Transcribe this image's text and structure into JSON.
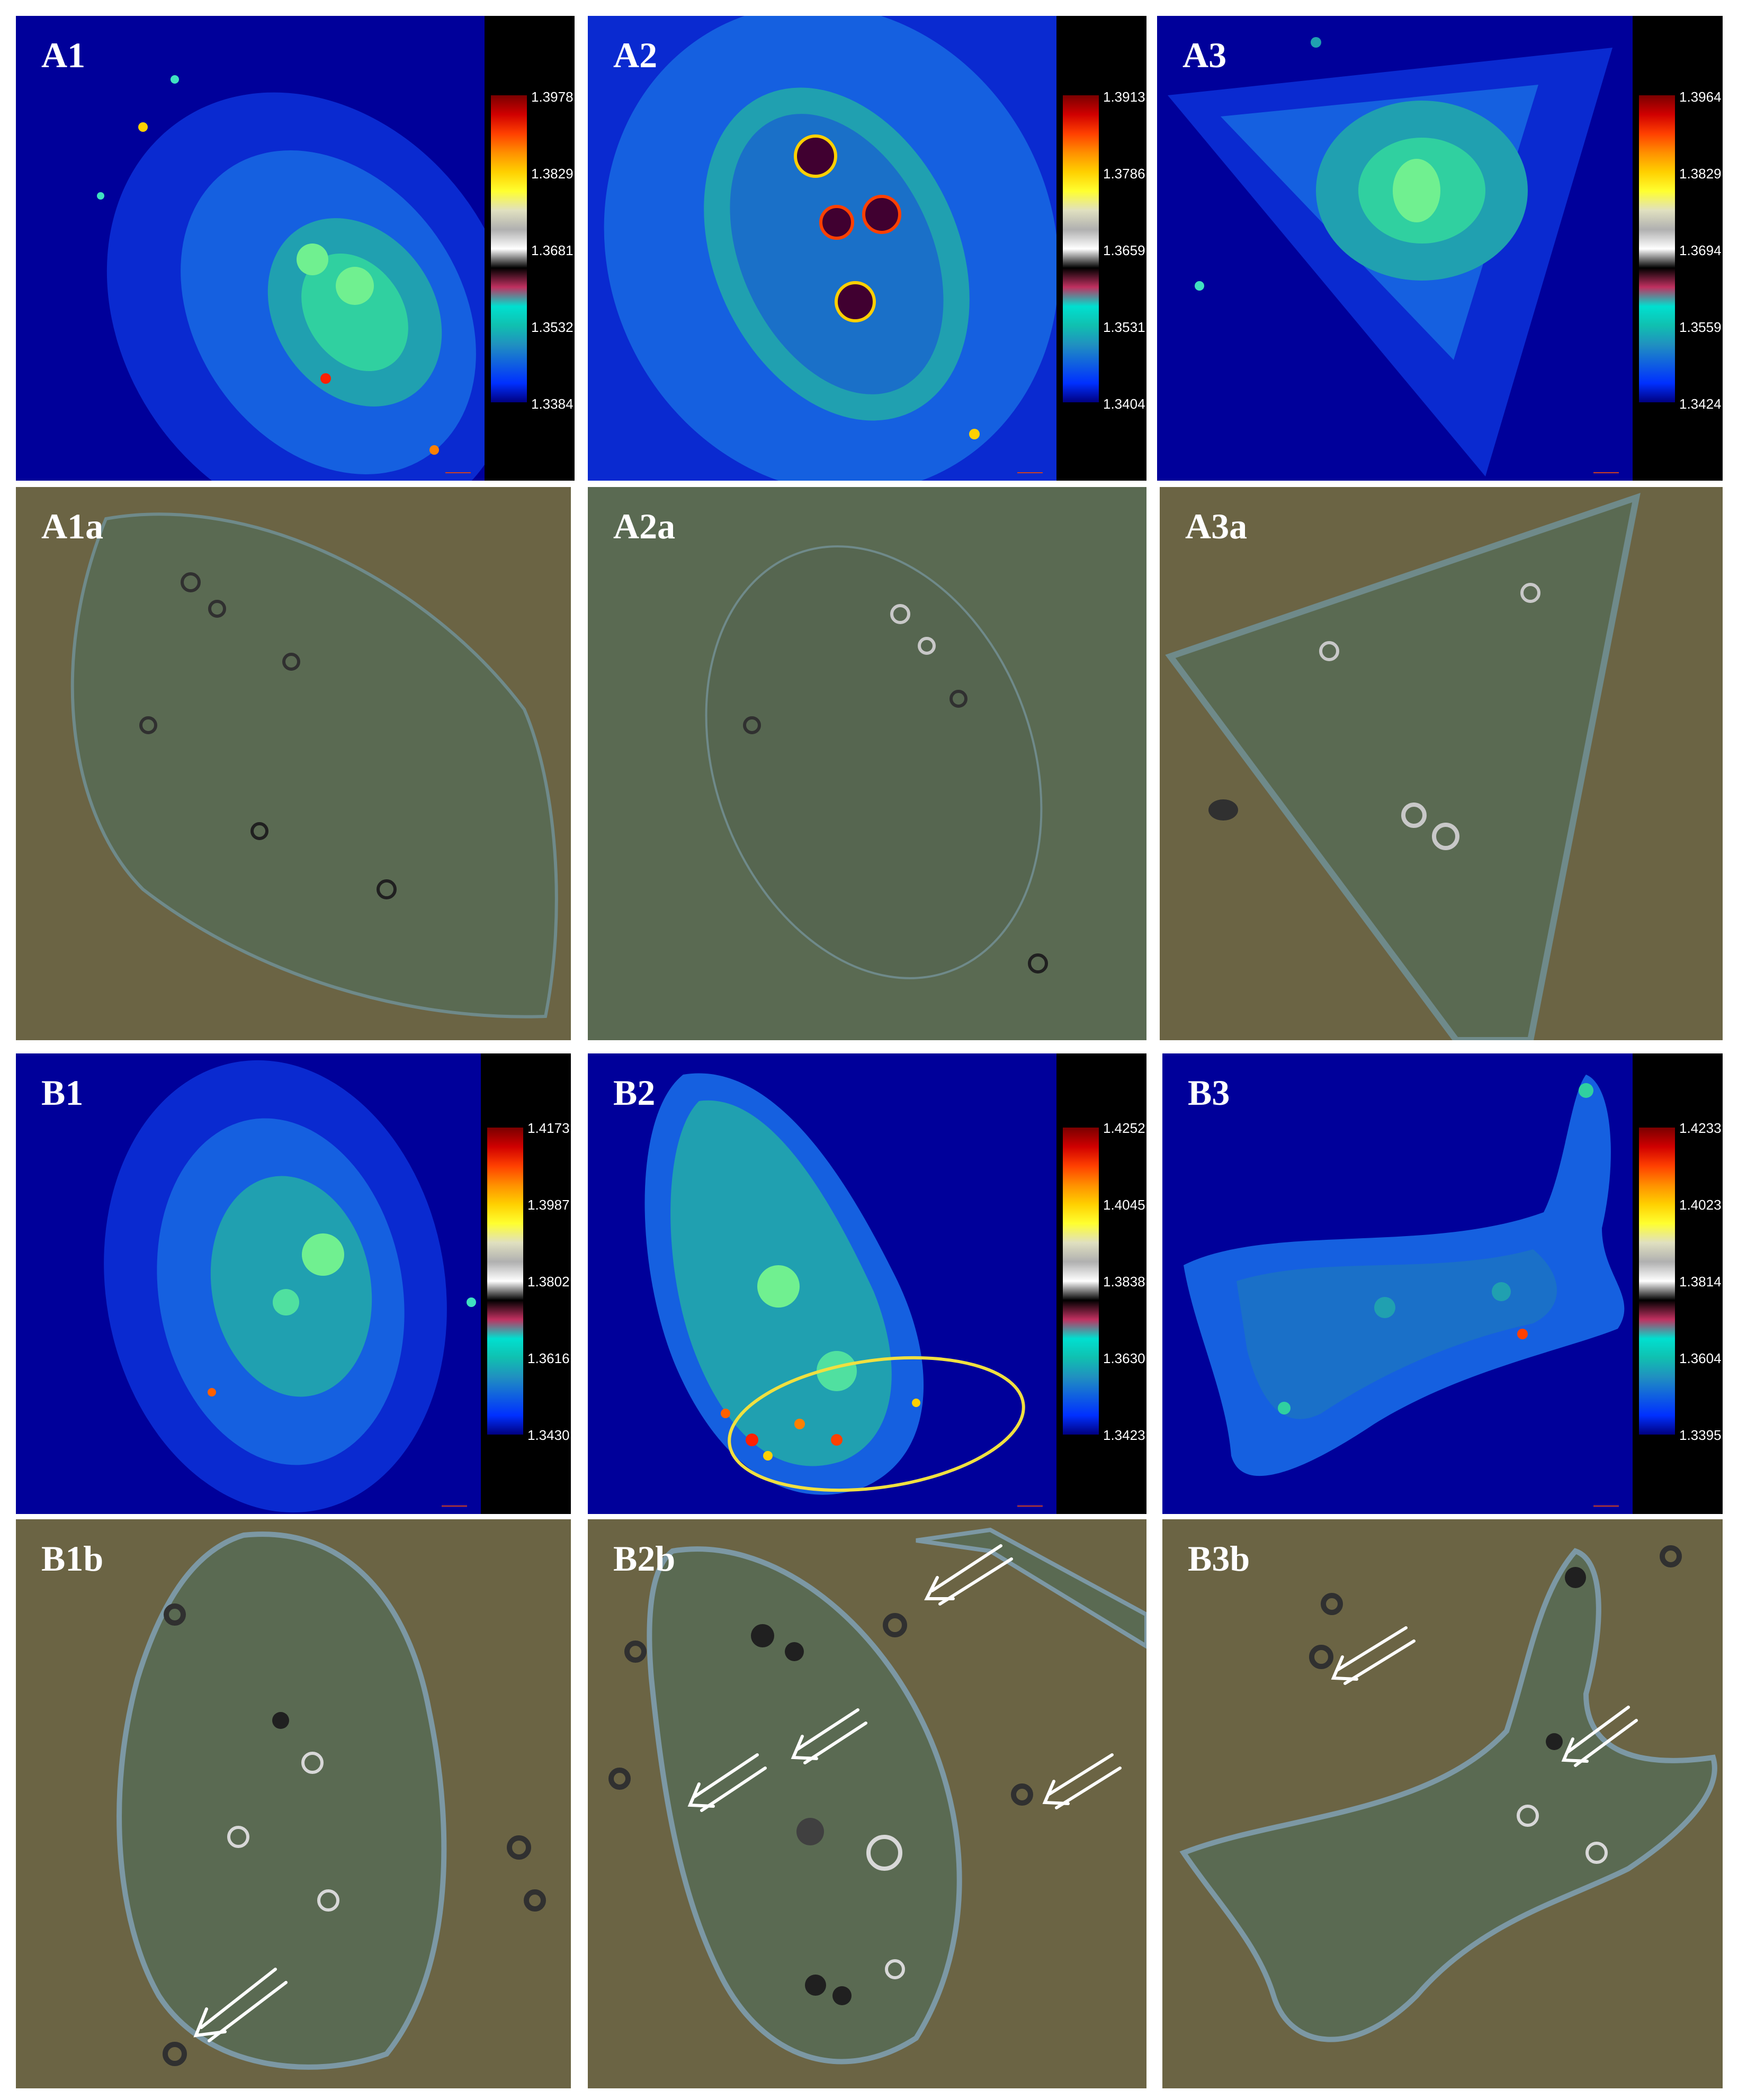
{
  "colors": {
    "ri_background": "#00009a",
    "brightfield_background": "#6b6444",
    "colorbar_background": "#000000",
    "ellipse_highlight": "#f0e040",
    "arrow": "#ffffff"
  },
  "colormap_stops": [
    "#7a0000",
    "#d00000",
    "#ff4000",
    "#ff9000",
    "#ffd000",
    "#ffff30",
    "#e0e0c0",
    "#b0b0b0",
    "#ffffff",
    "#000000",
    "#c03060",
    "#00e0d0",
    "#10c0b0",
    "#2090c0",
    "#1060e0",
    "#0030ff",
    "#000080"
  ],
  "panels": {
    "A1": {
      "label": "A1",
      "kind": "refractive-index",
      "ticks": [
        "1.3978",
        "1.3829",
        "1.3681",
        "1.3532",
        "1.3384"
      ]
    },
    "A2": {
      "label": "A2",
      "kind": "refractive-index",
      "ticks": [
        "1.3913",
        "1.3786",
        "1.3659",
        "1.3531",
        "1.3404"
      ]
    },
    "A3": {
      "label": "A3",
      "kind": "refractive-index",
      "ticks": [
        "1.3964",
        "1.3829",
        "1.3694",
        "1.3559",
        "1.3424"
      ]
    },
    "A1a": {
      "label": "A1a",
      "kind": "brightfield"
    },
    "A2a": {
      "label": "A2a",
      "kind": "brightfield"
    },
    "A3a": {
      "label": "A3a",
      "kind": "brightfield"
    },
    "B1": {
      "label": "B1",
      "kind": "refractive-index",
      "ticks": [
        "1.4173",
        "1.3987",
        "1.3802",
        "1.3616",
        "1.3430"
      ]
    },
    "B2": {
      "label": "B2",
      "kind": "refractive-index",
      "ticks": [
        "1.4252",
        "1.4045",
        "1.3838",
        "1.3630",
        "1.3423"
      ],
      "highlight": "yellow-ellipse"
    },
    "B3": {
      "label": "B3",
      "kind": "refractive-index",
      "ticks": [
        "1.4233",
        "1.4023",
        "1.3814",
        "1.3604",
        "1.3395"
      ]
    },
    "B1b": {
      "label": "B1b",
      "kind": "brightfield",
      "arrows": 1
    },
    "B2b": {
      "label": "B2b",
      "kind": "brightfield",
      "arrows": 4
    },
    "B3b": {
      "label": "B3b",
      "kind": "brightfield",
      "arrows": 2
    }
  }
}
